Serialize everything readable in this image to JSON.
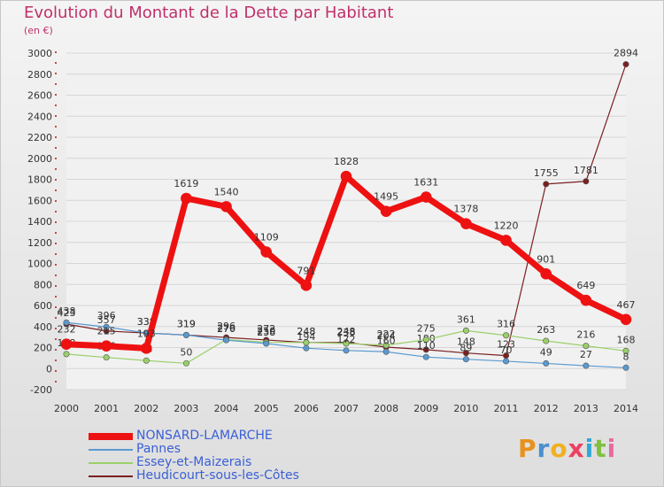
{
  "title": "Evolution du Montant de la Dette par Habitant",
  "subtitle": "(en €)",
  "brand": "Proxiti",
  "chart_data": {
    "type": "line",
    "x": [
      "2000",
      "2001",
      "2002",
      "2003",
      "2004",
      "2005",
      "2006",
      "2007",
      "2008",
      "2009",
      "2010",
      "2011",
      "2012",
      "2013",
      "2014"
    ],
    "ylim": [
      -200,
      3000
    ],
    "yticks": [
      -200,
      0,
      200,
      400,
      600,
      800,
      1000,
      1200,
      1400,
      1600,
      1800,
      2000,
      2200,
      2400,
      2600,
      2800,
      3000
    ],
    "grid": "horizontal",
    "legend_position": "bottom-left",
    "series": [
      {
        "name": "Heudicourt-sous-les-Côtes",
        "color": "#7a2020",
        "width": 1.2,
        "values": [
          423,
          357,
          338,
          319,
          296,
          272,
          248,
          248,
          204,
          180,
          148,
          123,
          1755,
          1781,
          2894
        ]
      },
      {
        "name": "Essey-et-Maizerais",
        "color": "#9ad06a",
        "width": 1.2,
        "values": [
          138,
          106,
          76,
          50,
          276,
          250,
          248,
          238,
          222,
          275,
          361,
          316,
          263,
          216,
          168
        ]
      },
      {
        "name": "Pannes",
        "color": "#5a9ad0",
        "width": 1.2,
        "values": [
          438,
          396,
          338,
          319,
          270,
          238,
          194,
          172,
          160,
          110,
          89,
          70,
          49,
          27,
          8
        ]
      },
      {
        "name": "NONSARD-LAMARCHE",
        "color": "#ee1111",
        "width": 7,
        "values": [
          232,
          215,
          193,
          1619,
          1540,
          1109,
          791,
          1828,
          1495,
          1631,
          1378,
          1220,
          901,
          649,
          467
        ]
      }
    ]
  }
}
